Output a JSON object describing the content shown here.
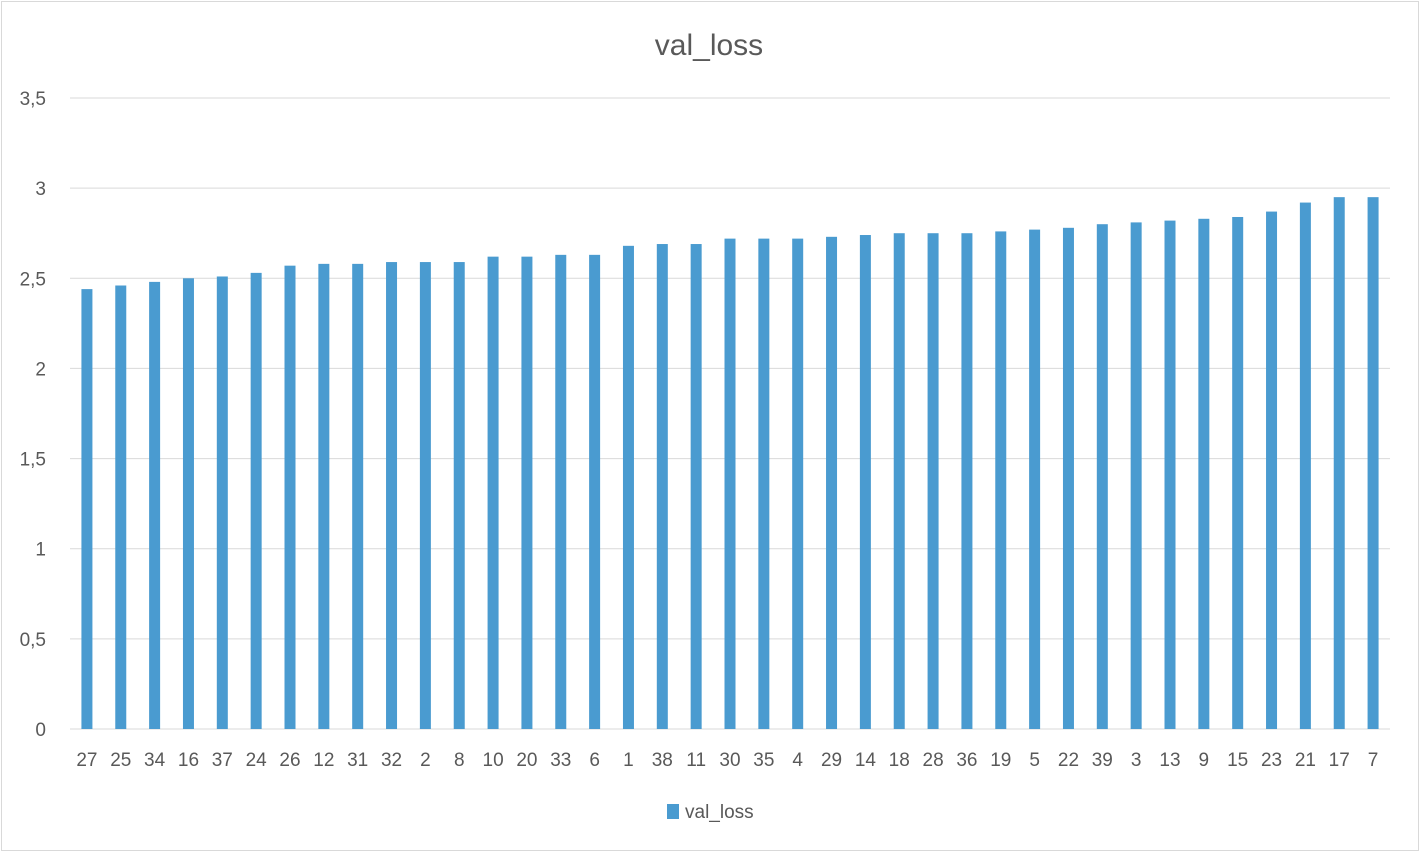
{
  "chart_data": {
    "type": "bar",
    "title": "val_loss",
    "xlabel": "",
    "ylabel": "",
    "ylim": [
      0,
      3.5
    ],
    "yticks": [
      "0",
      "0,5",
      "1",
      "1,5",
      "2",
      "2,5",
      "3",
      "3,5"
    ],
    "ytick_values": [
      0,
      0.5,
      1,
      1.5,
      2,
      2.5,
      3,
      3.5
    ],
    "grid": "horizontal",
    "legend": "bottom",
    "colors": {
      "bar": "#4a9bd0",
      "grid": "#d9d9d9",
      "text": "#595959"
    },
    "categories": [
      "27",
      "25",
      "34",
      "16",
      "37",
      "24",
      "26",
      "12",
      "31",
      "32",
      "2",
      "8",
      "10",
      "20",
      "33",
      "6",
      "1",
      "38",
      "11",
      "30",
      "35",
      "4",
      "29",
      "14",
      "18",
      "28",
      "36",
      "19",
      "5",
      "22",
      "39",
      "3",
      "13",
      "9",
      "15",
      "23",
      "21",
      "17",
      "7"
    ],
    "series": [
      {
        "name": "val_loss",
        "values": [
          2.44,
          2.46,
          2.48,
          2.5,
          2.51,
          2.53,
          2.57,
          2.58,
          2.58,
          2.59,
          2.59,
          2.59,
          2.62,
          2.62,
          2.63,
          2.63,
          2.68,
          2.69,
          2.69,
          2.72,
          2.72,
          2.72,
          2.73,
          2.74,
          2.75,
          2.75,
          2.75,
          2.76,
          2.77,
          2.78,
          2.8,
          2.81,
          2.82,
          2.83,
          2.84,
          2.87,
          2.92,
          2.95,
          2.95
        ]
      }
    ]
  }
}
